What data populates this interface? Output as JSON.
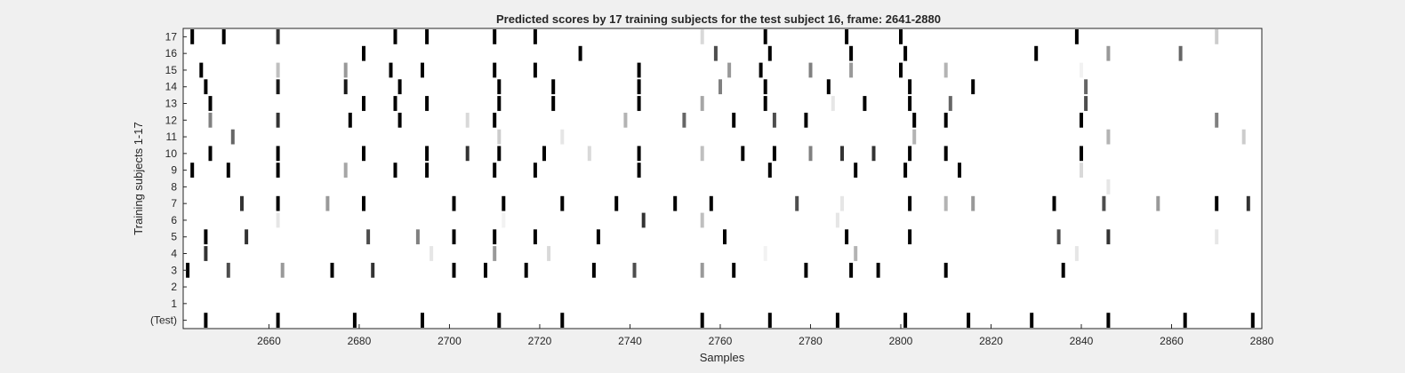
{
  "chart_data": {
    "type": "heatmap",
    "title": "Predicted scores by 17 training subjects for the test subject 16, frame: 2641-2880",
    "xlabel": "Samples",
    "ylabel": "Training subjects 1-17",
    "xlim": [
      2641,
      2880
    ],
    "x_ticks": [
      2660,
      2680,
      2700,
      2720,
      2740,
      2760,
      2780,
      2800,
      2820,
      2840,
      2860,
      2880
    ],
    "rows": [
      {
        "label": "17",
        "marks": [
          [
            2643,
            1.0
          ],
          [
            2650,
            1.0
          ],
          [
            2662,
            0.8
          ],
          [
            2688,
            1.0
          ],
          [
            2695,
            1.0
          ],
          [
            2710,
            1.0
          ],
          [
            2719,
            1.0
          ],
          [
            2756,
            0.15
          ],
          [
            2770,
            1.0
          ],
          [
            2788,
            1.0
          ],
          [
            2800,
            1.0
          ],
          [
            2839,
            1.0
          ],
          [
            2870,
            0.2
          ]
        ]
      },
      {
        "label": "16",
        "marks": [
          [
            2681,
            1.0
          ],
          [
            2729,
            1.0
          ],
          [
            2759,
            0.7
          ],
          [
            2771,
            1.0
          ],
          [
            2789,
            1.0
          ],
          [
            2801,
            1.0
          ],
          [
            2830,
            1.0
          ],
          [
            2846,
            0.4
          ],
          [
            2862,
            0.6
          ]
        ]
      },
      {
        "label": "15",
        "marks": [
          [
            2645,
            1.0
          ],
          [
            2662,
            0.25
          ],
          [
            2677,
            0.4
          ],
          [
            2687,
            1.0
          ],
          [
            2694,
            1.0
          ],
          [
            2710,
            1.0
          ],
          [
            2719,
            1.0
          ],
          [
            2742,
            1.0
          ],
          [
            2762,
            0.4
          ],
          [
            2769,
            1.0
          ],
          [
            2780,
            0.5
          ],
          [
            2789,
            0.4
          ],
          [
            2800,
            1.0
          ],
          [
            2810,
            0.3
          ],
          [
            2840,
            0.05
          ]
        ]
      },
      {
        "label": "14",
        "marks": [
          [
            2646,
            1.0
          ],
          [
            2662,
            0.9
          ],
          [
            2677,
            0.9
          ],
          [
            2689,
            1.0
          ],
          [
            2711,
            1.0
          ],
          [
            2723,
            1.0
          ],
          [
            2742,
            1.0
          ],
          [
            2760,
            0.5
          ],
          [
            2770,
            1.0
          ],
          [
            2784,
            1.0
          ],
          [
            2802,
            1.0
          ],
          [
            2816,
            1.0
          ],
          [
            2841,
            0.6
          ]
        ]
      },
      {
        "label": "13",
        "marks": [
          [
            2647,
            1.0
          ],
          [
            2681,
            1.0
          ],
          [
            2688,
            1.0
          ],
          [
            2695,
            1.0
          ],
          [
            2711,
            1.0
          ],
          [
            2723,
            1.0
          ],
          [
            2742,
            1.0
          ],
          [
            2756,
            0.35
          ],
          [
            2770,
            1.0
          ],
          [
            2785,
            0.1
          ],
          [
            2792,
            1.0
          ],
          [
            2802,
            1.0
          ],
          [
            2811,
            0.6
          ],
          [
            2841,
            0.7
          ]
        ]
      },
      {
        "label": "12",
        "marks": [
          [
            2647,
            0.5
          ],
          [
            2662,
            0.8
          ],
          [
            2678,
            1.0
          ],
          [
            2689,
            1.0
          ],
          [
            2704,
            0.15
          ],
          [
            2710,
            1.0
          ],
          [
            2739,
            0.3
          ],
          [
            2752,
            0.6
          ],
          [
            2763,
            1.0
          ],
          [
            2772,
            0.7
          ],
          [
            2779,
            1.0
          ],
          [
            2803,
            1.0
          ],
          [
            2810,
            1.0
          ],
          [
            2840,
            1.0
          ],
          [
            2870,
            0.5
          ]
        ]
      },
      {
        "label": "11",
        "marks": [
          [
            2652,
            0.6
          ],
          [
            2711,
            0.2
          ],
          [
            2725,
            0.1
          ],
          [
            2803,
            0.3
          ],
          [
            2846,
            0.3
          ],
          [
            2876,
            0.2
          ]
        ]
      },
      {
        "label": "10",
        "marks": [
          [
            2647,
            1.0
          ],
          [
            2662,
            1.0
          ],
          [
            2681,
            1.0
          ],
          [
            2695,
            1.0
          ],
          [
            2704,
            0.8
          ],
          [
            2711,
            1.0
          ],
          [
            2721,
            1.0
          ],
          [
            2731,
            0.15
          ],
          [
            2742,
            1.0
          ],
          [
            2756,
            0.25
          ],
          [
            2765,
            1.0
          ],
          [
            2772,
            1.0
          ],
          [
            2780,
            0.5
          ],
          [
            2787,
            0.8
          ],
          [
            2794,
            0.8
          ],
          [
            2802,
            1.0
          ],
          [
            2810,
            1.0
          ],
          [
            2840,
            1.0
          ]
        ]
      },
      {
        "label": "9",
        "marks": [
          [
            2643,
            1.0
          ],
          [
            2651,
            1.0
          ],
          [
            2662,
            1.0
          ],
          [
            2677,
            0.35
          ],
          [
            2688,
            1.0
          ],
          [
            2695,
            1.0
          ],
          [
            2710,
            1.0
          ],
          [
            2719,
            1.0
          ],
          [
            2742,
            1.0
          ],
          [
            2771,
            1.0
          ],
          [
            2790,
            1.0
          ],
          [
            2801,
            1.0
          ],
          [
            2813,
            1.0
          ],
          [
            2840,
            0.15
          ]
        ]
      },
      {
        "label": "8",
        "marks": [
          [
            2846,
            0.1
          ]
        ]
      },
      {
        "label": "7",
        "marks": [
          [
            2654,
            0.8
          ],
          [
            2662,
            1.0
          ],
          [
            2673,
            0.4
          ],
          [
            2681,
            1.0
          ],
          [
            2701,
            1.0
          ],
          [
            2712,
            1.0
          ],
          [
            2725,
            1.0
          ],
          [
            2737,
            1.0
          ],
          [
            2750,
            1.0
          ],
          [
            2758,
            1.0
          ],
          [
            2777,
            0.7
          ],
          [
            2787,
            0.1
          ],
          [
            2802,
            1.0
          ],
          [
            2810,
            0.3
          ],
          [
            2816,
            0.4
          ],
          [
            2834,
            1.0
          ],
          [
            2845,
            0.7
          ],
          [
            2857,
            0.4
          ],
          [
            2870,
            1.0
          ],
          [
            2877,
            0.8
          ]
        ]
      },
      {
        "label": "6",
        "marks": [
          [
            2662,
            0.1
          ],
          [
            2712,
            0.05
          ],
          [
            2743,
            0.8
          ],
          [
            2756,
            0.25
          ],
          [
            2786,
            0.1
          ]
        ]
      },
      {
        "label": "5",
        "marks": [
          [
            2646,
            1.0
          ],
          [
            2655,
            0.8
          ],
          [
            2682,
            0.7
          ],
          [
            2693,
            0.5
          ],
          [
            2701,
            1.0
          ],
          [
            2710,
            1.0
          ],
          [
            2719,
            1.0
          ],
          [
            2733,
            1.0
          ],
          [
            2761,
            1.0
          ],
          [
            2788,
            1.0
          ],
          [
            2802,
            1.0
          ],
          [
            2835,
            0.7
          ],
          [
            2846,
            0.8
          ],
          [
            2870,
            0.1
          ]
        ]
      },
      {
        "label": "4",
        "marks": [
          [
            2646,
            0.8
          ],
          [
            2696,
            0.1
          ],
          [
            2710,
            0.4
          ],
          [
            2722,
            0.15
          ],
          [
            2770,
            0.05
          ],
          [
            2790,
            0.3
          ],
          [
            2839,
            0.1
          ]
        ]
      },
      {
        "label": "3",
        "marks": [
          [
            2642,
            1.0
          ],
          [
            2651,
            0.7
          ],
          [
            2663,
            0.4
          ],
          [
            2674,
            1.0
          ],
          [
            2683,
            0.8
          ],
          [
            2701,
            1.0
          ],
          [
            2708,
            1.0
          ],
          [
            2717,
            1.0
          ],
          [
            2732,
            1.0
          ],
          [
            2741,
            0.7
          ],
          [
            2756,
            0.4
          ],
          [
            2763,
            1.0
          ],
          [
            2779,
            1.0
          ],
          [
            2789,
            1.0
          ],
          [
            2795,
            1.0
          ],
          [
            2810,
            1.0
          ],
          [
            2836,
            1.0
          ]
        ]
      },
      {
        "label": "2",
        "marks": []
      },
      {
        "label": "1",
        "marks": []
      },
      {
        "label": "(Test)",
        "marks": [
          [
            2646,
            1.0
          ],
          [
            2662,
            1.0
          ],
          [
            2679,
            1.0
          ],
          [
            2694,
            1.0
          ],
          [
            2711,
            1.0
          ],
          [
            2725,
            1.0
          ],
          [
            2756,
            1.0
          ],
          [
            2771,
            1.0
          ],
          [
            2786,
            1.0
          ],
          [
            2801,
            1.0
          ],
          [
            2815,
            1.0
          ],
          [
            2829,
            1.0
          ],
          [
            2846,
            1.0
          ],
          [
            2863,
            1.0
          ],
          [
            2878,
            1.0
          ]
        ]
      }
    ],
    "colormap": "gray-inverted",
    "grid": false
  }
}
